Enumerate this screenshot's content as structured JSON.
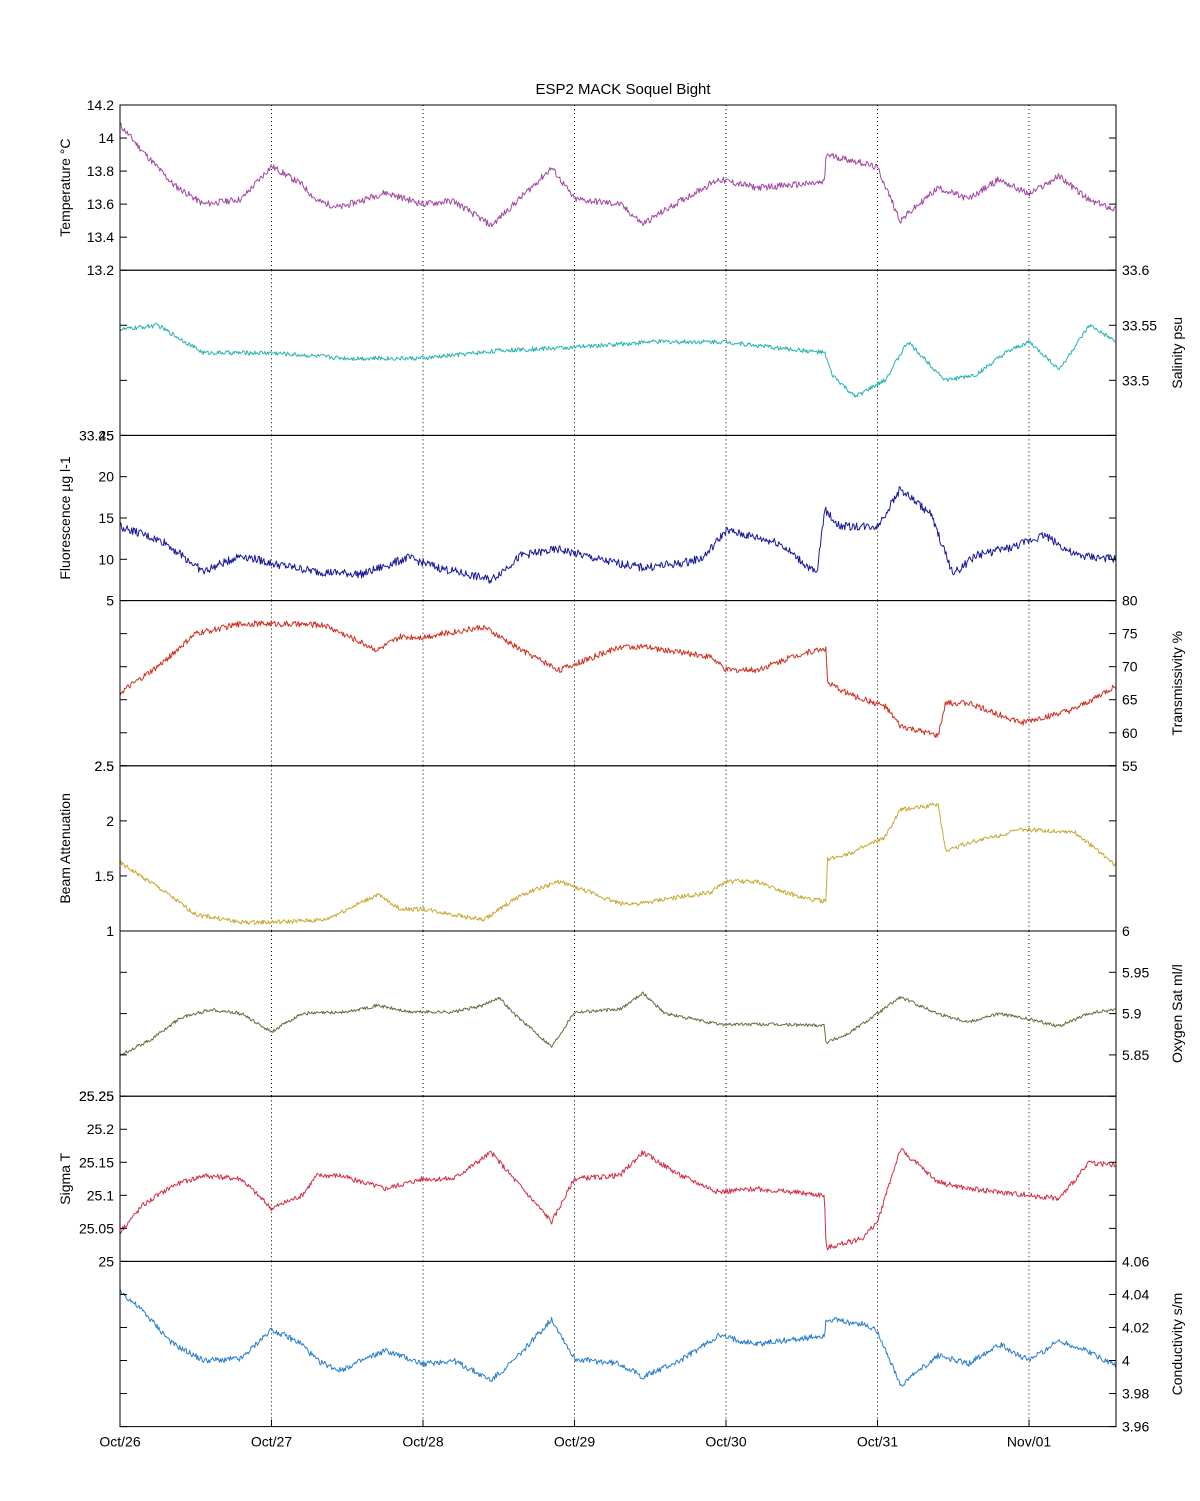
{
  "chart_data": {
    "type": "line",
    "title": "ESP2 MACK  Soquel Bight",
    "grid": "vertical dotted lines at day boundaries",
    "x_tick_labels": [
      "Oct/26",
      "Oct/27",
      "Oct/28",
      "Oct/29",
      "Oct/30",
      "Oct/31",
      "Nov/01"
    ],
    "xlim_days": [
      0,
      6.57
    ],
    "panels": [
      {
        "name": "temperature",
        "ylabel": "Temperature °C",
        "axis_side": "left",
        "ylim": [
          13.2,
          14.2
        ],
        "ticks": [
          "13.4",
          "13.6",
          "13.8",
          "14",
          "14.2"
        ],
        "tick_values": [
          13.4,
          13.6,
          13.8,
          14.0,
          14.2
        ],
        "bottom_label": "13.2",
        "color": "#a349a4",
        "noise": 0.02,
        "x": [
          0,
          0.15,
          0.35,
          0.55,
          0.8,
          1.0,
          1.2,
          1.3,
          1.45,
          1.75,
          2.0,
          2.2,
          2.45,
          2.6,
          2.85,
          3.0,
          3.3,
          3.45,
          3.7,
          3.95,
          4.2,
          4.65,
          4.66,
          4.9,
          5.0,
          5.15,
          5.4,
          5.6,
          5.8,
          6.0,
          6.2,
          6.4,
          6.57
        ],
        "y": [
          14.08,
          13.92,
          13.72,
          13.6,
          13.63,
          13.83,
          13.72,
          13.62,
          13.58,
          13.67,
          13.6,
          13.62,
          13.47,
          13.6,
          13.82,
          13.63,
          13.6,
          13.48,
          13.62,
          13.75,
          13.7,
          13.73,
          13.9,
          13.85,
          13.82,
          13.5,
          13.7,
          13.63,
          13.75,
          13.66,
          13.77,
          13.62,
          13.57
        ]
      },
      {
        "name": "salinity",
        "ylabel": "Salinity psu",
        "axis_side": "right",
        "ylim": [
          33.45,
          33.6
        ],
        "ticks": [
          "33.5",
          "33.55",
          "33.6"
        ],
        "tick_values": [
          33.5,
          33.55,
          33.6
        ],
        "bottom_label": "33.45",
        "color": "#2ab3b3",
        "noise": 0.002,
        "x": [
          0,
          0.25,
          0.55,
          1.0,
          1.5,
          2.0,
          2.5,
          3.0,
          3.5,
          4.0,
          4.3,
          4.65,
          4.7,
          4.85,
          5.05,
          5.2,
          5.45,
          5.65,
          5.85,
          6.0,
          6.2,
          6.4,
          6.57
        ],
        "y": [
          33.546,
          33.55,
          33.525,
          33.525,
          33.52,
          33.52,
          33.527,
          33.53,
          33.535,
          33.535,
          33.53,
          33.525,
          33.505,
          33.485,
          33.5,
          33.535,
          33.5,
          33.505,
          33.525,
          33.535,
          33.51,
          33.55,
          33.535
        ]
      },
      {
        "name": "fluorescence",
        "ylabel": "Fluorescence µg l-1",
        "axis_side": "left",
        "ylim": [
          5,
          25
        ],
        "ticks": [
          "10",
          "15",
          "20",
          "25"
        ],
        "tick_values": [
          10,
          15,
          20,
          25
        ],
        "bottom_label": "5",
        "color": "#1a1a9c",
        "noise": 0.5,
        "x": [
          0,
          0.3,
          0.55,
          0.8,
          1.0,
          1.3,
          1.6,
          1.9,
          2.1,
          2.45,
          2.65,
          2.9,
          3.2,
          3.45,
          3.7,
          3.85,
          4.0,
          4.35,
          4.6,
          4.65,
          4.75,
          5.0,
          5.15,
          5.35,
          5.5,
          5.65,
          5.9,
          6.1,
          6.3,
          6.57
        ],
        "y": [
          14,
          12,
          8.5,
          10.5,
          9.5,
          8.5,
          8.2,
          10.2,
          9.0,
          7.5,
          10.5,
          11.2,
          9.8,
          9.0,
          9.5,
          10.2,
          13.5,
          12.0,
          8.2,
          16.0,
          14.0,
          14.0,
          18.5,
          15.5,
          8.2,
          10.5,
          11.5,
          13.0,
          10.5,
          10.0
        ]
      },
      {
        "name": "transmissivity",
        "ylabel": "Transmissivity %",
        "axis_side": "right",
        "ylim": [
          55,
          80
        ],
        "ticks": [
          "55",
          "60",
          "65",
          "70",
          "75",
          "80"
        ],
        "tick_values": [
          55,
          60,
          65,
          70,
          75,
          80
        ],
        "bottom_label": "2.5",
        "color": "#cc3322",
        "noise": 0.45,
        "x": [
          0,
          0.25,
          0.5,
          0.8,
          1.0,
          1.35,
          1.7,
          1.85,
          2.0,
          2.4,
          2.65,
          2.9,
          3.3,
          3.45,
          3.6,
          3.9,
          4.0,
          4.2,
          4.5,
          4.66,
          4.67,
          4.85,
          5.05,
          5.15,
          5.4,
          5.45,
          5.6,
          5.95,
          6.3,
          6.57
        ],
        "y": [
          66,
          70,
          75,
          76.5,
          76.5,
          76.3,
          72.5,
          74.5,
          74.5,
          76,
          72.5,
          69.5,
          73,
          73,
          72.5,
          71.5,
          69.5,
          69.5,
          72,
          72.8,
          67.5,
          65.5,
          64,
          61,
          59.5,
          64.5,
          64.5,
          61.5,
          63.5,
          67
        ]
      },
      {
        "name": "beam_attenuation",
        "ylabel": "Beam Attenuation",
        "axis_side": "left",
        "ylim": [
          1,
          2.5
        ],
        "ticks": [
          "1.5",
          "2",
          "2.5"
        ],
        "tick_values": [
          1.5,
          2.0,
          2.5
        ],
        "bottom_label": "1",
        "color": "#c8a832",
        "noise": 0.02,
        "x": [
          0,
          0.25,
          0.5,
          0.8,
          1.0,
          1.35,
          1.7,
          1.85,
          2.0,
          2.4,
          2.65,
          2.9,
          3.3,
          3.45,
          3.6,
          3.9,
          4.0,
          4.2,
          4.5,
          4.66,
          4.67,
          4.85,
          5.05,
          5.15,
          5.4,
          5.45,
          5.6,
          5.95,
          6.3,
          6.57
        ],
        "y": [
          1.62,
          1.4,
          1.15,
          1.08,
          1.08,
          1.1,
          1.33,
          1.2,
          1.2,
          1.1,
          1.33,
          1.45,
          1.25,
          1.25,
          1.29,
          1.35,
          1.45,
          1.45,
          1.3,
          1.27,
          1.65,
          1.72,
          1.85,
          2.1,
          2.15,
          1.73,
          1.8,
          1.92,
          1.9,
          1.6
        ]
      },
      {
        "name": "oxygen_sat",
        "ylabel": "Oxygen Sat ml/l",
        "axis_side": "right",
        "ylim": [
          5.8,
          6.0
        ],
        "ticks": [
          "5.85",
          "5.9",
          "5.95",
          "6"
        ],
        "tick_values": [
          5.85,
          5.9,
          5.95,
          6.0
        ],
        "bottom_label": "25.25",
        "color": "#6b6b3a",
        "noise": 0.002,
        "x": [
          0,
          0.2,
          0.4,
          0.6,
          0.8,
          1.0,
          1.2,
          1.5,
          1.7,
          1.9,
          2.2,
          2.4,
          2.5,
          2.6,
          2.85,
          3.0,
          3.3,
          3.45,
          3.6,
          3.95,
          4.2,
          4.65,
          4.66,
          4.8,
          5.0,
          5.15,
          5.4,
          5.6,
          5.8,
          6.0,
          6.2,
          6.4,
          6.57
        ],
        "y": [
          5.85,
          5.868,
          5.895,
          5.905,
          5.9,
          5.878,
          5.9,
          5.902,
          5.91,
          5.902,
          5.902,
          5.91,
          5.92,
          5.9,
          5.86,
          5.902,
          5.905,
          5.925,
          5.9,
          5.887,
          5.887,
          5.886,
          5.865,
          5.875,
          5.9,
          5.92,
          5.9,
          5.89,
          5.9,
          5.893,
          5.885,
          5.9,
          5.905
        ]
      },
      {
        "name": "sigma_t",
        "ylabel": "Sigma T",
        "axis_side": "left",
        "ylim": [
          25,
          25.25
        ],
        "ticks": [
          "25.05",
          "25.1",
          "25.15",
          "25.2",
          "25.25"
        ],
        "tick_values": [
          25.05,
          25.1,
          25.15,
          25.2,
          25.25
        ],
        "bottom_label": "25",
        "color": "#d03048",
        "noise": 0.004,
        "x": [
          0,
          0.15,
          0.35,
          0.55,
          0.8,
          1.0,
          1.2,
          1.3,
          1.45,
          1.75,
          2.0,
          2.2,
          2.45,
          2.6,
          2.85,
          3.0,
          3.3,
          3.45,
          3.7,
          3.95,
          4.2,
          4.65,
          4.66,
          4.9,
          5.0,
          5.15,
          5.4,
          5.6,
          5.8,
          6.0,
          6.2,
          6.4,
          6.57
        ],
        "y": [
          25.045,
          25.085,
          25.115,
          25.13,
          25.125,
          25.08,
          25.1,
          25.13,
          25.13,
          25.11,
          25.125,
          25.125,
          25.165,
          25.125,
          25.06,
          25.125,
          25.13,
          25.165,
          25.13,
          25.105,
          25.11,
          25.1,
          25.02,
          25.035,
          25.06,
          25.17,
          25.12,
          25.11,
          25.105,
          25.1,
          25.095,
          25.15,
          25.145
        ]
      },
      {
        "name": "conductivity",
        "ylabel": "Conductivity s/m",
        "axis_side": "right",
        "ylim": [
          3.96,
          4.06
        ],
        "ticks": [
          "3.96",
          "3.98",
          "4",
          "4.02",
          "4.04",
          "4.06"
        ],
        "tick_values": [
          3.96,
          3.98,
          4.0,
          4.02,
          4.04,
          4.06
        ],
        "bottom_label": "",
        "color": "#2a7fcc",
        "noise": 0.0018,
        "x": [
          0,
          0.15,
          0.35,
          0.55,
          0.8,
          1.0,
          1.2,
          1.3,
          1.45,
          1.75,
          2.0,
          2.2,
          2.45,
          2.6,
          2.85,
          3.0,
          3.3,
          3.45,
          3.7,
          3.95,
          4.2,
          4.65,
          4.66,
          4.9,
          5.0,
          5.15,
          5.4,
          5.6,
          5.8,
          6.0,
          6.2,
          6.4,
          6.57
        ],
        "y": [
          4.042,
          4.03,
          4.01,
          4.0,
          4.001,
          4.019,
          4.01,
          4.0,
          3.994,
          4.006,
          3.998,
          4.0,
          3.988,
          4.0,
          4.025,
          4.001,
          3.998,
          3.99,
          4.0,
          4.015,
          4.01,
          4.015,
          4.025,
          4.022,
          4.018,
          3.985,
          4.003,
          3.998,
          4.01,
          4.0,
          4.012,
          4.005,
          3.997
        ]
      }
    ]
  }
}
